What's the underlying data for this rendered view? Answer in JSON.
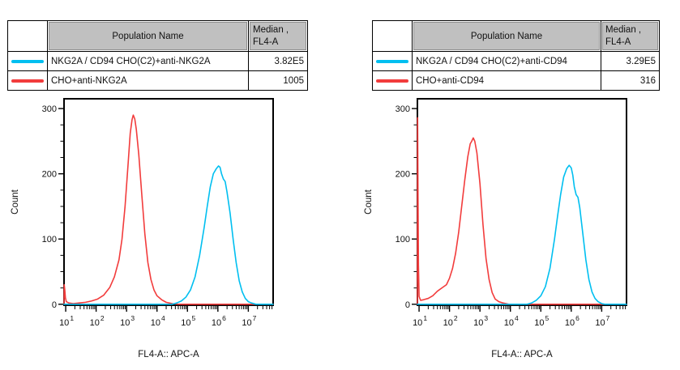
{
  "page": {
    "background": "#ffffff"
  },
  "colors": {
    "cyan_series": "#00bff0",
    "red_series": "#f23c3c",
    "header_gray": "#c0c0c0"
  },
  "tables": {
    "left": {
      "header": {
        "population": "Population Name",
        "median_line1": "Median ,",
        "median_line2": "FL4-A"
      },
      "rows": [
        {
          "name": "NKG2A / CD94 CHO(C2)+anti-NKG2A",
          "median": "3.82E5",
          "color": "#00bff0"
        },
        {
          "name": "CHO+anti-NKG2A",
          "median": "1005",
          "color": "#f23c3c"
        }
      ]
    },
    "right": {
      "header": {
        "population": "Population Name",
        "median_line1": "Median ,",
        "median_line2": "FL4-A"
      },
      "rows": [
        {
          "name": "NKG2A / CD94 CHO(C2)+anti-CD94",
          "median": "3.29E5",
          "color": "#00bff0"
        },
        {
          "name": "CHO+anti-CD94",
          "median": "316",
          "color": "#f23c3c"
        }
      ]
    }
  },
  "chart_data": [
    {
      "id": "left",
      "type": "line",
      "subtype": "flow-histogram-overlay",
      "title": "",
      "xlabel": "FL4-A:: APC-A",
      "ylabel": "Count",
      "x_scale": "log",
      "x_min_exp": 0.945,
      "x_max_exp": 7.815,
      "x_decade_ticks": [
        1,
        2,
        3,
        4,
        5,
        6,
        7
      ],
      "y_min": 0,
      "y_max": 315,
      "y_major_ticks": [
        0,
        100,
        200,
        300
      ],
      "y_minor_step": 25,
      "grid": false,
      "legend_position": "none",
      "series": [
        {
          "name": "CHO+anti-NKG2A",
          "color": "#f23c3c",
          "median": "1005",
          "points": [
            [
              0.945,
              0
            ],
            [
              0.95,
              30
            ],
            [
              0.97,
              22
            ],
            [
              0.99,
              10
            ],
            [
              1.02,
              4
            ],
            [
              1.1,
              2
            ],
            [
              1.25,
              1
            ],
            [
              1.45,
              2
            ],
            [
              1.65,
              3
            ],
            [
              1.85,
              5
            ],
            [
              2.05,
              8
            ],
            [
              2.25,
              14
            ],
            [
              2.45,
              26
            ],
            [
              2.6,
              42
            ],
            [
              2.75,
              68
            ],
            [
              2.85,
              100
            ],
            [
              2.95,
              150
            ],
            [
              3.05,
              215
            ],
            [
              3.12,
              262
            ],
            [
              3.18,
              283
            ],
            [
              3.22,
              290
            ],
            [
              3.27,
              284
            ],
            [
              3.32,
              268
            ],
            [
              3.4,
              230
            ],
            [
              3.5,
              168
            ],
            [
              3.6,
              108
            ],
            [
              3.7,
              64
            ],
            [
              3.8,
              38
            ],
            [
              3.9,
              22
            ],
            [
              4.0,
              13
            ],
            [
              4.15,
              7
            ],
            [
              4.3,
              3
            ],
            [
              4.5,
              1
            ],
            [
              4.7,
              0
            ],
            [
              7.815,
              0
            ]
          ]
        },
        {
          "name": "NKG2A / CD94 CHO(C2)+anti-NKG2A",
          "color": "#00bff0",
          "median": "3.82E5",
          "points": [
            [
              0.945,
              0
            ],
            [
              4.5,
              0
            ],
            [
              4.65,
              2
            ],
            [
              4.8,
              5
            ],
            [
              4.95,
              11
            ],
            [
              5.1,
              22
            ],
            [
              5.25,
              42
            ],
            [
              5.4,
              75
            ],
            [
              5.55,
              118
            ],
            [
              5.65,
              150
            ],
            [
              5.75,
              180
            ],
            [
              5.85,
              200
            ],
            [
              5.95,
              208
            ],
            [
              6.02,
              212
            ],
            [
              6.07,
              210
            ],
            [
              6.12,
              200
            ],
            [
              6.18,
              192
            ],
            [
              6.24,
              188
            ],
            [
              6.3,
              172
            ],
            [
              6.4,
              140
            ],
            [
              6.5,
              100
            ],
            [
              6.6,
              64
            ],
            [
              6.7,
              36
            ],
            [
              6.8,
              19
            ],
            [
              6.9,
              9
            ],
            [
              7.0,
              4
            ],
            [
              7.1,
              2
            ],
            [
              7.25,
              0
            ],
            [
              7.815,
              0
            ]
          ]
        }
      ]
    },
    {
      "id": "right",
      "type": "line",
      "subtype": "flow-histogram-overlay",
      "title": "",
      "xlabel": "FL4-A:: APC-A",
      "ylabel": "Count",
      "x_scale": "log",
      "x_min_exp": 0.945,
      "x_max_exp": 7.815,
      "x_decade_ticks": [
        1,
        2,
        3,
        4,
        5,
        6,
        7
      ],
      "y_min": 0,
      "y_max": 315,
      "y_major_ticks": [
        0,
        100,
        200,
        300
      ],
      "y_minor_step": 25,
      "grid": false,
      "legend_position": "none",
      "series": [
        {
          "name": "CHO+anti-CD94",
          "color": "#f23c3c",
          "median": "316",
          "points": [
            [
              0.945,
              0
            ],
            [
              0.952,
              286
            ],
            [
              0.965,
              170
            ],
            [
              0.98,
              60
            ],
            [
              1.0,
              12
            ],
            [
              1.05,
              6
            ],
            [
              1.15,
              7
            ],
            [
              1.3,
              9
            ],
            [
              1.45,
              13
            ],
            [
              1.6,
              20
            ],
            [
              1.75,
              25
            ],
            [
              1.9,
              30
            ],
            [
              2.0,
              40
            ],
            [
              2.1,
              55
            ],
            [
              2.2,
              78
            ],
            [
              2.3,
              110
            ],
            [
              2.4,
              150
            ],
            [
              2.5,
              190
            ],
            [
              2.6,
              226
            ],
            [
              2.68,
              246
            ],
            [
              2.73,
              250
            ],
            [
              2.78,
              255
            ],
            [
              2.83,
              250
            ],
            [
              2.9,
              232
            ],
            [
              3.0,
              185
            ],
            [
              3.1,
              122
            ],
            [
              3.2,
              70
            ],
            [
              3.3,
              38
            ],
            [
              3.4,
              18
            ],
            [
              3.5,
              8
            ],
            [
              3.62,
              4
            ],
            [
              3.75,
              2
            ],
            [
              3.95,
              0
            ],
            [
              7.815,
              0
            ]
          ]
        },
        {
          "name": "NKG2A / CD94 CHO(C2)+anti-CD94",
          "color": "#00bff0",
          "median": "3.29E5",
          "points": [
            [
              0.945,
              0
            ],
            [
              4.55,
              0
            ],
            [
              4.7,
              2
            ],
            [
              4.85,
              6
            ],
            [
              5.0,
              13
            ],
            [
              5.15,
              27
            ],
            [
              5.3,
              55
            ],
            [
              5.45,
              100
            ],
            [
              5.55,
              135
            ],
            [
              5.65,
              168
            ],
            [
              5.75,
              195
            ],
            [
              5.85,
              208
            ],
            [
              5.93,
              213
            ],
            [
              6.0,
              209
            ],
            [
              6.05,
              198
            ],
            [
              6.1,
              180
            ],
            [
              6.16,
              168
            ],
            [
              6.22,
              164
            ],
            [
              6.28,
              148
            ],
            [
              6.38,
              108
            ],
            [
              6.48,
              68
            ],
            [
              6.58,
              38
            ],
            [
              6.68,
              19
            ],
            [
              6.78,
              9
            ],
            [
              6.88,
              4
            ],
            [
              7.0,
              1
            ],
            [
              7.1,
              0
            ],
            [
              7.815,
              0
            ]
          ]
        }
      ]
    }
  ]
}
